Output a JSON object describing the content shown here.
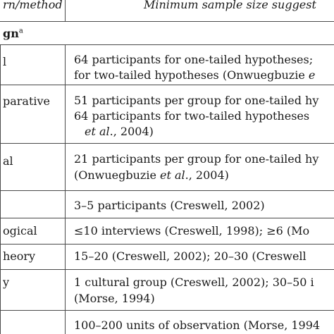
{
  "header": {
    "col1": "rn/method",
    "col2": "Minimum sample size suggest"
  },
  "section": {
    "label": "gn",
    "sup": "a"
  },
  "rows": [
    {
      "label": "l",
      "lines": [
        [
          "64 participants for one-tailed hypotheses;"
        ],
        [
          "for two-tailed hypotheses (Onwuegbuzie "
        ]
      ]
    },
    {
      "label": "parative",
      "lines": [
        [
          "51 participants per group for one-tailed hy"
        ],
        [
          "64 participants for two-tailed hypotheses "
        ],
        [
          "et al",
          "., 2004)"
        ]
      ]
    },
    {
      "label": "al",
      "lines": [
        [
          "21 participants per group for one-tailed hy"
        ],
        [
          "(Onwuegbuzie ",
          "et al",
          "., 2004)"
        ]
      ]
    },
    {
      "label": "",
      "lines": [
        [
          "3–5 participants (Creswell, 2002)"
        ]
      ]
    },
    {
      "label": "ogical",
      "lines": [
        [
          "≤10 interviews (Creswell, 1998); ≥6 (Mo"
        ]
      ]
    },
    {
      "label": "heory",
      "lines": [
        [
          "15–20 (Creswell, 2002); 20–30 (Creswell"
        ]
      ]
    },
    {
      "label": "y",
      "lines": [
        [
          "1 cultural group (Creswell, 2002); 30–50 i"
        ],
        [
          "(Morse, 1994)"
        ]
      ]
    },
    {
      "label": "",
      "lines": [
        [
          "100–200 units of observation (Morse, 1994"
        ]
      ]
    }
  ]
}
